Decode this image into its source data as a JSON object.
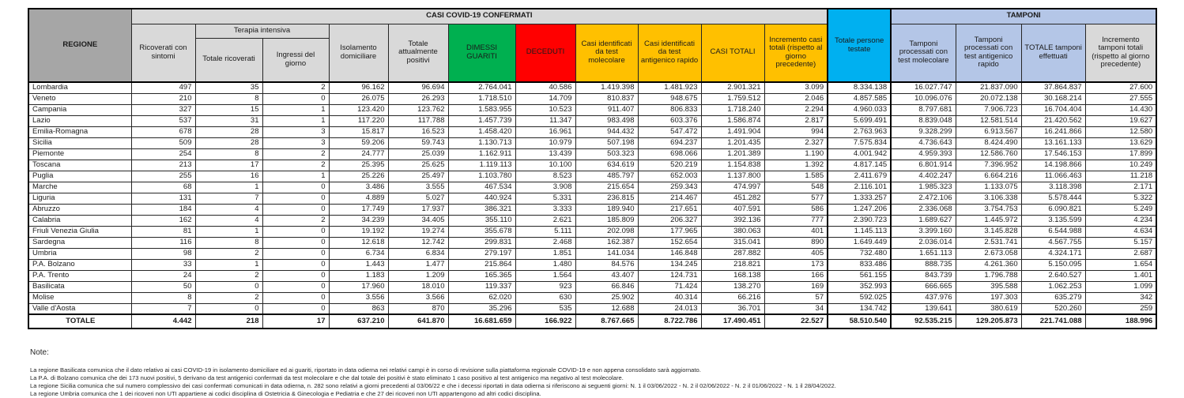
{
  "table": {
    "header": {
      "regione": "REGIONE",
      "casi_banner": "CASI COVID-19 CONFERMATI",
      "tamponi_banner": "TAMPONI",
      "terapia_banner": "Terapia intensiva",
      "cols": {
        "ricoverati": "Ricoverati con sintomi",
        "totale_ricoverati": "Totale ricoverati",
        "ingressi": "Ingressi del giorno",
        "isolamento": "Isolamento domiciliare",
        "positivi": "Totale attualmente positivi",
        "dimessi": "DIMESSI GUARITI",
        "deceduti": "DECEDUTI",
        "casi_molecolare": "Casi identificati da test molecolare",
        "casi_antigenico": "Casi identificati da test antigenico rapido",
        "casi_totali": "CASI TOTALI",
        "incremento_casi": "Incremento casi totali (rispetto al giorno precedente)",
        "persone_testate": "Totale persone testate",
        "tamponi_molecolare": "Tamponi processati con test molecolare",
        "tamponi_antigenico": "Tamponi processati con test antigenico rapido",
        "tamponi_totale": "TOTALE tamponi effettuati",
        "incremento_tamponi": "Incremento tamponi totali (rispetto al giorno precedente)"
      }
    },
    "rows": [
      {
        "regione": "Lombardia",
        "values": [
          "497",
          "35",
          "2",
          "96.162",
          "96.694",
          "2.764.041",
          "40.586",
          "1.419.398",
          "1.481.923",
          "2.901.321",
          "3.099",
          "8.334.138",
          "16.027.747",
          "21.837.090",
          "37.864.837",
          "27.600"
        ]
      },
      {
        "regione": "Veneto",
        "values": [
          "210",
          "8",
          "0",
          "26.075",
          "26.293",
          "1.718.510",
          "14.709",
          "810.837",
          "948.675",
          "1.759.512",
          "2.046",
          "4.857.585",
          "10.096.076",
          "20.072.138",
          "30.168.214",
          "27.555"
        ]
      },
      {
        "regione": "Campania",
        "values": [
          "327",
          "15",
          "1",
          "123.420",
          "123.762",
          "1.583.955",
          "10.523",
          "911.407",
          "806.833",
          "1.718.240",
          "2.294",
          "4.960.033",
          "8.797.681",
          "7.906.723",
          "16.704.404",
          "14.430"
        ]
      },
      {
        "regione": "Lazio",
        "values": [
          "537",
          "31",
          "1",
          "117.220",
          "117.788",
          "1.457.739",
          "11.347",
          "983.498",
          "603.376",
          "1.586.874",
          "2.817",
          "5.699.491",
          "8.839.048",
          "12.581.514",
          "21.420.562",
          "19.627"
        ]
      },
      {
        "regione": "Emilia-Romagna",
        "values": [
          "678",
          "28",
          "3",
          "15.817",
          "16.523",
          "1.458.420",
          "16.961",
          "944.432",
          "547.472",
          "1.491.904",
          "994",
          "2.763.963",
          "9.328.299",
          "6.913.567",
          "16.241.866",
          "12.580"
        ]
      },
      {
        "regione": "Sicilia",
        "values": [
          "509",
          "28",
          "3",
          "59.206",
          "59.743",
          "1.130.713",
          "10.979",
          "507.198",
          "694.237",
          "1.201.435",
          "2.327",
          "7.575.834",
          "4.736.643",
          "8.424.490",
          "13.161.133",
          "13.629"
        ]
      },
      {
        "regione": "Piemonte",
        "values": [
          "254",
          "8",
          "2",
          "24.777",
          "25.039",
          "1.162.911",
          "13.439",
          "503.323",
          "698.066",
          "1.201.389",
          "1.190",
          "4.001.942",
          "4.959.393",
          "12.586.760",
          "17.546.153",
          "17.899"
        ]
      },
      {
        "regione": "Toscana",
        "values": [
          "213",
          "17",
          "2",
          "25.395",
          "25.625",
          "1.119.113",
          "10.100",
          "634.619",
          "520.219",
          "1.154.838",
          "1.392",
          "4.817.145",
          "6.801.914",
          "7.396.952",
          "14.198.866",
          "10.249"
        ]
      },
      {
        "regione": "Puglia",
        "values": [
          "255",
          "16",
          "1",
          "25.226",
          "25.497",
          "1.103.780",
          "8.523",
          "485.797",
          "652.003",
          "1.137.800",
          "1.585",
          "2.411.679",
          "4.402.247",
          "6.664.216",
          "11.066.463",
          "11.218"
        ]
      },
      {
        "regione": "Marche",
        "values": [
          "68",
          "1",
          "0",
          "3.486",
          "3.555",
          "467.534",
          "3.908",
          "215.654",
          "259.343",
          "474.997",
          "548",
          "2.116.101",
          "1.985.323",
          "1.133.075",
          "3.118.398",
          "2.171"
        ]
      },
      {
        "regione": "Liguria",
        "values": [
          "131",
          "7",
          "0",
          "4.889",
          "5.027",
          "440.924",
          "5.331",
          "236.815",
          "214.467",
          "451.282",
          "577",
          "1.333.257",
          "2.472.106",
          "3.106.338",
          "5.578.444",
          "5.322"
        ]
      },
      {
        "regione": "Abruzzo",
        "values": [
          "184",
          "4",
          "0",
          "17.749",
          "17.937",
          "386.321",
          "3.333",
          "189.940",
          "217.651",
          "407.591",
          "586",
          "1.247.206",
          "2.336.068",
          "3.754.753",
          "6.090.821",
          "5.249"
        ]
      },
      {
        "regione": "Calabria",
        "values": [
          "162",
          "4",
          "2",
          "34.239",
          "34.405",
          "355.110",
          "2.621",
          "185.809",
          "206.327",
          "392.136",
          "777",
          "2.390.723",
          "1.689.627",
          "1.445.972",
          "3.135.599",
          "4.234"
        ]
      },
      {
        "regione": "Friuli Venezia Giulia",
        "values": [
          "81",
          "1",
          "0",
          "19.192",
          "19.274",
          "355.678",
          "5.111",
          "202.098",
          "177.965",
          "380.063",
          "401",
          "1.145.113",
          "3.399.160",
          "3.145.828",
          "6.544.988",
          "4.634"
        ]
      },
      {
        "regione": "Sardegna",
        "values": [
          "116",
          "8",
          "0",
          "12.618",
          "12.742",
          "299.831",
          "2.468",
          "162.387",
          "152.654",
          "315.041",
          "890",
          "1.649.449",
          "2.036.014",
          "2.531.741",
          "4.567.755",
          "5.157"
        ]
      },
      {
        "regione": "Umbria",
        "values": [
          "98",
          "2",
          "0",
          "6.734",
          "6.834",
          "279.197",
          "1.851",
          "141.034",
          "146.848",
          "287.882",
          "405",
          "732.480",
          "1.651.113",
          "2.673.058",
          "4.324.171",
          "2.687"
        ]
      },
      {
        "regione": "P.A. Bolzano",
        "values": [
          "33",
          "1",
          "0",
          "1.443",
          "1.477",
          "215.864",
          "1.480",
          "84.576",
          "134.245",
          "218.821",
          "173",
          "833.486",
          "888.735",
          "4.261.360",
          "5.150.095",
          "1.654"
        ]
      },
      {
        "regione": "P.A. Trento",
        "values": [
          "24",
          "2",
          "0",
          "1.183",
          "1.209",
          "165.365",
          "1.564",
          "43.407",
          "124.731",
          "168.138",
          "166",
          "561.155",
          "843.739",
          "1.796.788",
          "2.640.527",
          "1.401"
        ]
      },
      {
        "regione": "Basilicata",
        "values": [
          "50",
          "0",
          "0",
          "17.960",
          "18.010",
          "119.337",
          "923",
          "66.846",
          "71.424",
          "138.270",
          "169",
          "352.993",
          "666.665",
          "395.588",
          "1.062.253",
          "1.099"
        ]
      },
      {
        "regione": "Molise",
        "values": [
          "8",
          "2",
          "0",
          "3.556",
          "3.566",
          "62.020",
          "630",
          "25.902",
          "40.314",
          "66.216",
          "57",
          "592.025",
          "437.976",
          "197.303",
          "635.279",
          "342"
        ]
      },
      {
        "regione": "Valle d'Aosta",
        "values": [
          "7",
          "0",
          "0",
          "863",
          "870",
          "35.296",
          "535",
          "12.688",
          "24.013",
          "36.701",
          "34",
          "134.742",
          "139.641",
          "380.619",
          "520.260",
          "259"
        ]
      }
    ],
    "total_row": {
      "regione": "TOTALE",
      "values": [
        "4.442",
        "218",
        "17",
        "637.210",
        "641.870",
        "16.681.659",
        "166.922",
        "8.767.665",
        "8.722.786",
        "17.490.451",
        "22.527",
        "58.510.540",
        "92.535.215",
        "129.205.873",
        "221.741.088",
        "188.996"
      ]
    }
  },
  "notes": {
    "title": "Note:",
    "lines": [
      "La regione Basilicata comunica che il dato relativo ai casi COVID-19 in isolamento domiciliare ed ai guariti, riportato in data odierna nei relativi campi è in corso di revisione sulla piattaforma regionale COVID-19 e non appena consolidato sarà aggiornato.",
      "La P.A. di Bolzano comunica che dei 173  nuovi positivi,  5 derivano da test antigenici confermati da test molecolare e che dal totale dei positivi è stato eliminato  1 caso positivo al test antigenico ma negativo al test molecolare.",
      "La regione Sicilia comunica che sul numero complessivo dei casi confermati comunicati in data odierna, n. 282 sono relativi a giorni precedenti al 03/06/22 e che i decessi riportati in data odierna si riferiscono ai seguenti giorni: N. 1 il 03/06/2022 - N. 2 il 02/06/2022 - N. 2 il 01/06/2022 - N. 1 il 28/04/2022.",
      "La regione Umbria comunica che 1 dei ricoveri non UTI appartiene ai codici disciplina di Ostetricia & Ginecologia e Pediatria e che 27 dei ricoveri non UTI appartengono ad altri codici disciplina."
    ]
  },
  "colors": {
    "green": "#00B050",
    "red": "#FF0000",
    "yellow": "#FFC000",
    "cyan": "#00B0F0",
    "light_blue": "#B4C6E7",
    "header_gray": "#D9D9D9",
    "region_gray": "#A6A6A6",
    "total_gray": "#BFBFBF"
  }
}
